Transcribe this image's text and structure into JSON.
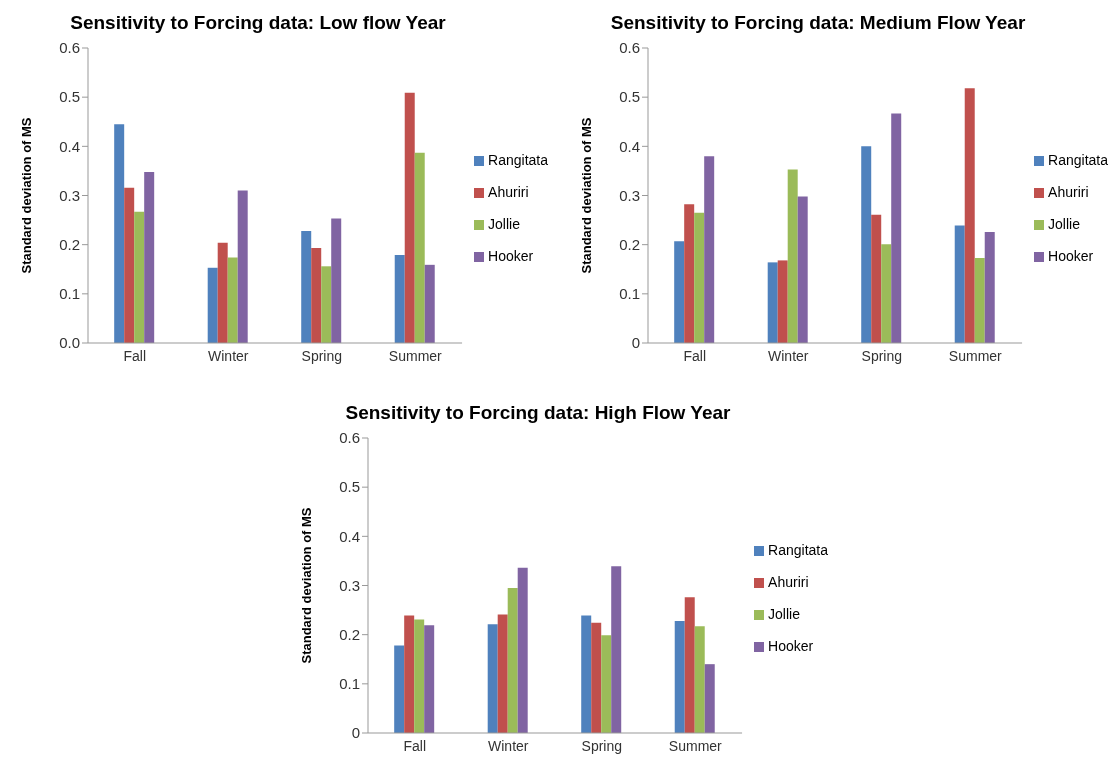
{
  "chart_data": [
    {
      "type": "bar",
      "title": "Sensitivity to Forcing data: Low flow Year",
      "ylabel": "Standard deviation of MS",
      "categories": [
        "Fall",
        "Winter",
        "Spring",
        "Summer"
      ],
      "series": [
        {
          "name": "Rangitata",
          "color": "#4f81bd",
          "values": [
            0.445,
            0.153,
            0.228,
            0.179
          ]
        },
        {
          "name": "Ahuriri",
          "color": "#c0504d",
          "values": [
            0.316,
            0.204,
            0.193,
            0.509
          ]
        },
        {
          "name": "Jollie",
          "color": "#9bbb59",
          "values": [
            0.267,
            0.174,
            0.156,
            0.387
          ]
        },
        {
          "name": "Hooker",
          "color": "#8064a2",
          "values": [
            0.348,
            0.31,
            0.253,
            0.159
          ]
        }
      ],
      "ylim": [
        0,
        0.6
      ],
      "yticks": [
        {
          "value": 0,
          "label": "0.0"
        },
        0.1,
        0.2,
        0.3,
        0.4,
        0.5,
        0.6
      ],
      "grid": false,
      "legend": "right"
    },
    {
      "type": "bar",
      "title": "Sensitivity to Forcing data: Medium Flow Year",
      "ylabel": "Standard deviation of MS",
      "categories": [
        "Fall",
        "Winter",
        "Spring",
        "Summer"
      ],
      "series": [
        {
          "name": "Rangitata",
          "color": "#4f81bd",
          "values": [
            0.207,
            0.164,
            0.4,
            0.239
          ]
        },
        {
          "name": "Ahuriri",
          "color": "#c0504d",
          "values": [
            0.282,
            0.168,
            0.261,
            0.518
          ]
        },
        {
          "name": "Jollie",
          "color": "#9bbb59",
          "values": [
            0.265,
            0.353,
            0.201,
            0.173
          ]
        },
        {
          "name": "Hooker",
          "color": "#8064a2",
          "values": [
            0.38,
            0.298,
            0.467,
            0.226
          ]
        }
      ],
      "ylim": [
        0,
        0.6
      ],
      "yticks": [
        0,
        0.1,
        0.2,
        0.3,
        0.4,
        0.5,
        0.6
      ],
      "grid": false,
      "legend": "right"
    },
    {
      "type": "bar",
      "title": "Sensitivity to Forcing data: High Flow Year",
      "ylabel": "Standard deviation of MS",
      "categories": [
        "Fall",
        "Winter",
        "Spring",
        "Summer"
      ],
      "series": [
        {
          "name": "Rangitata",
          "color": "#4f81bd",
          "values": [
            0.178,
            0.221,
            0.239,
            0.228
          ]
        },
        {
          "name": "Ahuriri",
          "color": "#c0504d",
          "values": [
            0.239,
            0.241,
            0.224,
            0.276
          ]
        },
        {
          "name": "Jollie",
          "color": "#9bbb59",
          "values": [
            0.231,
            0.295,
            0.199,
            0.217
          ]
        },
        {
          "name": "Hooker",
          "color": "#8064a2",
          "values": [
            0.219,
            0.336,
            0.339,
            0.14
          ]
        }
      ],
      "ylim": [
        0,
        0.6
      ],
      "yticks": [
        0,
        0.1,
        0.2,
        0.3,
        0.4,
        0.5,
        0.6
      ],
      "grid": false,
      "legend": "right"
    }
  ]
}
